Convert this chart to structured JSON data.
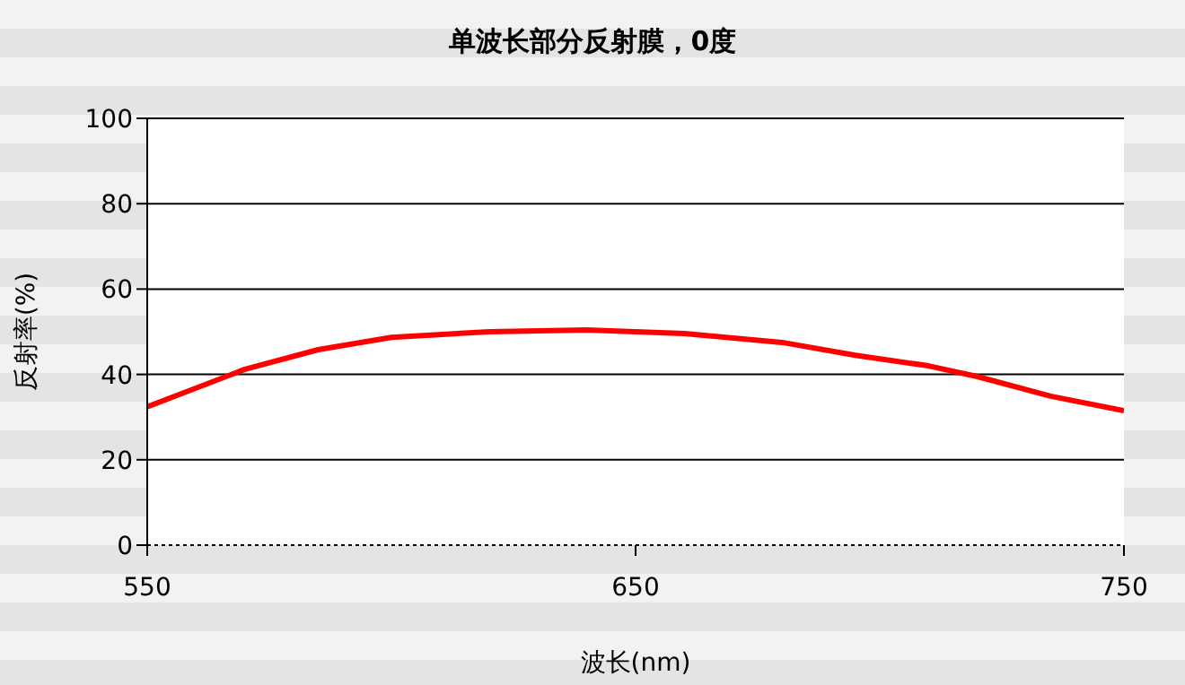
{
  "chart_data": {
    "type": "line",
    "title": "单波长部分反射膜，0度",
    "xlabel": "波长(nm)",
    "ylabel": "反射率(%)",
    "x": [
      550,
      570,
      585,
      600,
      620,
      640,
      660,
      680,
      695,
      710,
      720,
      735,
      750
    ],
    "series": [
      {
        "color": "#ff0000",
        "values": [
          32.4,
          41.2,
          45.8,
          48.7,
          50.0,
          50.4,
          49.6,
          47.5,
          44.5,
          42.0,
          39.5,
          34.9,
          31.5
        ]
      }
    ],
    "xlim": [
      550,
      750
    ],
    "xticks": [
      550,
      650,
      750
    ],
    "ylim": [
      0,
      100
    ],
    "yticks": [
      0,
      20,
      40,
      60,
      80,
      100
    ],
    "grid": "y",
    "legend": false,
    "marker": "none",
    "line_style": "solid"
  }
}
